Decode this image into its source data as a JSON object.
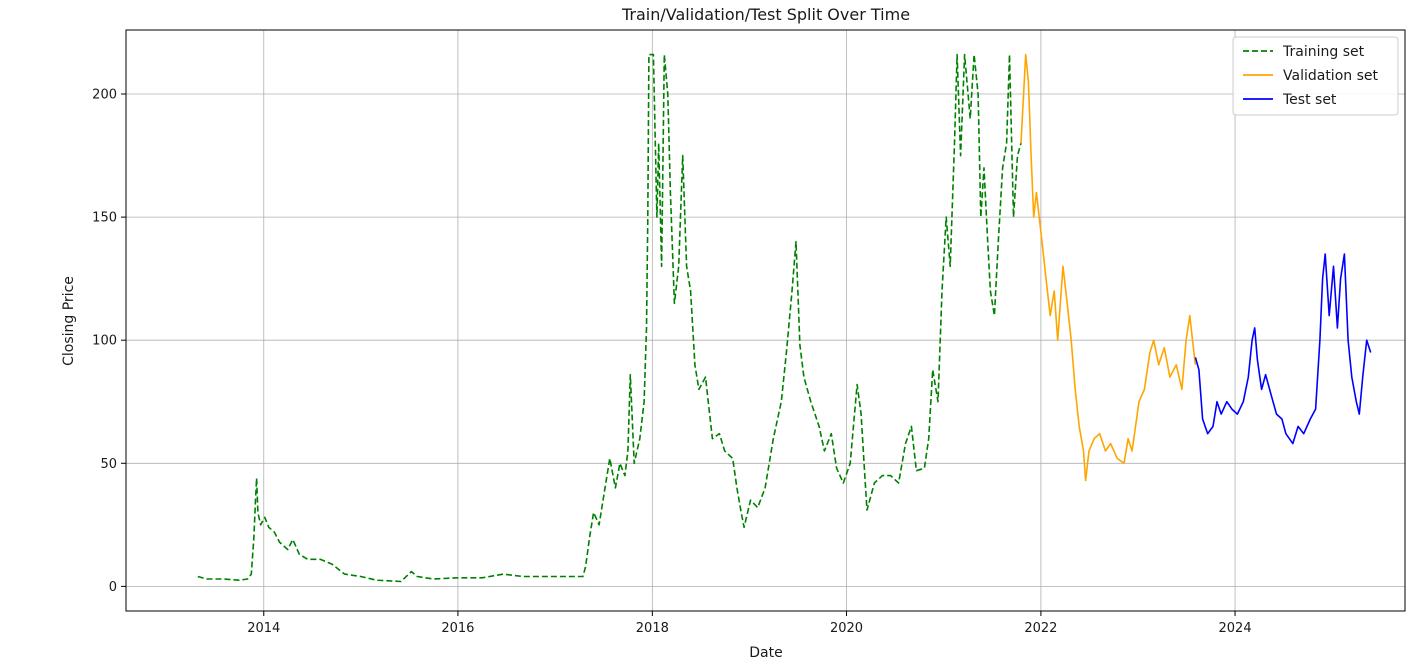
{
  "chart_data": {
    "type": "line",
    "title": "Train/Validation/Test Split Over Time",
    "xlabel": "Date",
    "ylabel": "Closing Price",
    "x_axis_type": "date",
    "xlim": [
      "2012-08-01",
      "2025-10-01"
    ],
    "ylim": [
      -10,
      226
    ],
    "xticks": [
      {
        "label": "2014",
        "date": "2014-01-01"
      },
      {
        "label": "2016",
        "date": "2016-01-01"
      },
      {
        "label": "2018",
        "date": "2018-01-01"
      },
      {
        "label": "2020",
        "date": "2020-01-01"
      },
      {
        "label": "2022",
        "date": "2022-01-01"
      },
      {
        "label": "2024",
        "date": "2024-01-01"
      }
    ],
    "yticks": [
      0,
      50,
      100,
      150,
      200
    ],
    "grid": true,
    "legend_position": "top-right",
    "series": [
      {
        "name": "Training set",
        "color": "#008000",
        "style": "dashed",
        "points": [
          [
            "2013-04-28",
            4
          ],
          [
            "2013-06-01",
            3
          ],
          [
            "2013-08-01",
            3
          ],
          [
            "2013-10-01",
            2.5
          ],
          [
            "2013-11-01",
            3
          ],
          [
            "2013-11-15",
            5
          ],
          [
            "2013-11-25",
            20
          ],
          [
            "2013-12-01",
            35
          ],
          [
            "2013-12-05",
            44
          ],
          [
            "2013-12-10",
            30
          ],
          [
            "2013-12-20",
            25
          ],
          [
            "2014-01-05",
            28
          ],
          [
            "2014-01-20",
            24
          ],
          [
            "2014-02-10",
            22
          ],
          [
            "2014-03-01",
            18
          ],
          [
            "2014-04-01",
            15
          ],
          [
            "2014-04-20",
            19
          ],
          [
            "2014-05-15",
            13
          ],
          [
            "2014-06-15",
            11
          ],
          [
            "2014-08-01",
            11
          ],
          [
            "2014-09-15",
            9
          ],
          [
            "2014-11-01",
            5
          ],
          [
            "2015-01-01",
            4
          ],
          [
            "2015-03-01",
            2.5
          ],
          [
            "2015-06-01",
            2
          ],
          [
            "2015-07-10",
            6
          ],
          [
            "2015-08-01",
            4
          ],
          [
            "2015-10-01",
            3
          ],
          [
            "2016-01-01",
            3.5
          ],
          [
            "2016-04-01",
            3.5
          ],
          [
            "2016-06-20",
            5
          ],
          [
            "2016-09-01",
            4
          ],
          [
            "2017-01-01",
            4
          ],
          [
            "2017-03-01",
            4
          ],
          [
            "2017-04-15",
            4
          ],
          [
            "2017-04-25",
            8
          ],
          [
            "2017-05-10",
            20
          ],
          [
            "2017-05-25",
            30
          ],
          [
            "2017-06-15",
            25
          ],
          [
            "2017-07-10",
            42
          ],
          [
            "2017-07-25",
            52
          ],
          [
            "2017-08-15",
            40
          ],
          [
            "2017-09-01",
            50
          ],
          [
            "2017-09-20",
            45
          ],
          [
            "2017-10-01",
            55
          ],
          [
            "2017-10-10",
            86
          ],
          [
            "2017-10-25",
            50
          ],
          [
            "2017-11-15",
            60
          ],
          [
            "2017-12-01",
            75
          ],
          [
            "2017-12-10",
            105
          ],
          [
            "2017-12-15",
            150
          ],
          [
            "2017-12-19",
            216
          ],
          [
            "2018-01-05",
            216
          ],
          [
            "2018-01-18",
            150
          ],
          [
            "2018-01-25",
            180
          ],
          [
            "2018-02-05",
            130
          ],
          [
            "2018-02-15",
            216
          ],
          [
            "2018-02-28",
            200
          ],
          [
            "2018-03-10",
            160
          ],
          [
            "2018-03-25",
            115
          ],
          [
            "2018-04-10",
            130
          ],
          [
            "2018-04-25",
            175
          ],
          [
            "2018-05-10",
            130
          ],
          [
            "2018-05-25",
            120
          ],
          [
            "2018-06-10",
            90
          ],
          [
            "2018-06-25",
            80
          ],
          [
            "2018-07-20",
            85
          ],
          [
            "2018-08-15",
            60
          ],
          [
            "2018-09-10",
            62
          ],
          [
            "2018-09-30",
            55
          ],
          [
            "2018-10-30",
            52
          ],
          [
            "2018-11-15",
            40
          ],
          [
            "2018-12-01",
            30
          ],
          [
            "2018-12-12",
            24
          ],
          [
            "2019-01-05",
            35
          ],
          [
            "2019-02-01",
            32
          ],
          [
            "2019-03-01",
            40
          ],
          [
            "2019-04-01",
            60
          ],
          [
            "2019-05-01",
            75
          ],
          [
            "2019-05-20",
            95
          ],
          [
            "2019-06-10",
            120
          ],
          [
            "2019-06-25",
            140
          ],
          [
            "2019-07-10",
            98
          ],
          [
            "2019-07-25",
            85
          ],
          [
            "2019-08-20",
            75
          ],
          [
            "2019-09-20",
            65
          ],
          [
            "2019-10-10",
            55
          ],
          [
            "2019-11-05",
            62
          ],
          [
            "2019-11-25",
            48
          ],
          [
            "2019-12-20",
            42
          ],
          [
            "2020-01-15",
            50
          ],
          [
            "2020-02-10",
            82
          ],
          [
            "2020-02-25",
            70
          ],
          [
            "2020-03-10",
            45
          ],
          [
            "2020-03-18",
            31
          ],
          [
            "2020-04-15",
            42
          ],
          [
            "2020-05-15",
            45
          ],
          [
            "2020-06-15",
            45
          ],
          [
            "2020-07-15",
            42
          ],
          [
            "2020-08-10",
            58
          ],
          [
            "2020-09-01",
            65
          ],
          [
            "2020-09-20",
            47
          ],
          [
            "2020-10-20",
            48
          ],
          [
            "2020-11-05",
            60
          ],
          [
            "2020-11-20",
            88
          ],
          [
            "2020-12-10",
            75
          ],
          [
            "2020-12-25",
            120
          ],
          [
            "2021-01-10",
            150
          ],
          [
            "2021-01-25",
            130
          ],
          [
            "2021-02-10",
            180
          ],
          [
            "2021-02-20",
            216
          ],
          [
            "2021-03-05",
            175
          ],
          [
            "2021-03-20",
            216
          ],
          [
            "2021-04-10",
            190
          ],
          [
            "2021-04-25",
            216
          ],
          [
            "2021-05-10",
            200
          ],
          [
            "2021-05-20",
            150
          ],
          [
            "2021-06-01",
            170
          ],
          [
            "2021-06-15",
            140
          ],
          [
            "2021-06-25",
            120
          ],
          [
            "2021-07-10",
            110
          ],
          [
            "2021-07-25",
            140
          ],
          [
            "2021-08-10",
            170
          ],
          [
            "2021-08-25",
            180
          ],
          [
            "2021-09-05",
            216
          ],
          [
            "2021-09-20",
            150
          ],
          [
            "2021-10-05",
            175
          ],
          [
            "2021-10-18",
            180
          ]
        ]
      },
      {
        "name": "Validation set",
        "color": "#ffa500",
        "style": "solid",
        "points": [
          [
            "2021-10-18",
            180
          ],
          [
            "2021-10-28",
            200
          ],
          [
            "2021-11-05",
            216
          ],
          [
            "2021-11-15",
            205
          ],
          [
            "2021-11-25",
            175
          ],
          [
            "2021-12-05",
            150
          ],
          [
            "2021-12-15",
            160
          ],
          [
            "2022-01-05",
            140
          ],
          [
            "2022-01-20",
            125
          ],
          [
            "2022-02-05",
            110
          ],
          [
            "2022-02-20",
            120
          ],
          [
            "2022-03-05",
            100
          ],
          [
            "2022-03-25",
            130
          ],
          [
            "2022-04-10",
            115
          ],
          [
            "2022-04-25",
            100
          ],
          [
            "2022-05-10",
            80
          ],
          [
            "2022-05-25",
            65
          ],
          [
            "2022-06-10",
            55
          ],
          [
            "2022-06-18",
            43
          ],
          [
            "2022-07-01",
            55
          ],
          [
            "2022-07-20",
            60
          ],
          [
            "2022-08-10",
            62
          ],
          [
            "2022-09-01",
            55
          ],
          [
            "2022-09-20",
            58
          ],
          [
            "2022-10-15",
            52
          ],
          [
            "2022-11-10",
            50
          ],
          [
            "2022-11-25",
            60
          ],
          [
            "2022-12-10",
            55
          ],
          [
            "2023-01-05",
            75
          ],
          [
            "2023-01-25",
            80
          ],
          [
            "2023-02-15",
            95
          ],
          [
            "2023-03-01",
            100
          ],
          [
            "2023-03-20",
            90
          ],
          [
            "2023-04-10",
            97
          ],
          [
            "2023-05-01",
            85
          ],
          [
            "2023-05-25",
            90
          ],
          [
            "2023-06-15",
            80
          ],
          [
            "2023-07-01",
            100
          ],
          [
            "2023-07-15",
            110
          ],
          [
            "2023-07-25",
            100
          ],
          [
            "2023-08-05",
            90
          ]
        ]
      },
      {
        "name": "Test set",
        "color": "#0000ff",
        "style": "solid",
        "points": [
          [
            "2023-08-05",
            93
          ],
          [
            "2023-08-18",
            88
          ],
          [
            "2023-09-01",
            68
          ],
          [
            "2023-09-20",
            62
          ],
          [
            "2023-10-10",
            65
          ],
          [
            "2023-10-25",
            75
          ],
          [
            "2023-11-10",
            70
          ],
          [
            "2023-12-01",
            75
          ],
          [
            "2023-12-20",
            72
          ],
          [
            "2024-01-10",
            70
          ],
          [
            "2024-02-01",
            75
          ],
          [
            "2024-02-20",
            85
          ],
          [
            "2024-03-05",
            100
          ],
          [
            "2024-03-15",
            105
          ],
          [
            "2024-03-25",
            92
          ],
          [
            "2024-04-10",
            80
          ],
          [
            "2024-04-25",
            86
          ],
          [
            "2024-05-15",
            78
          ],
          [
            "2024-06-05",
            70
          ],
          [
            "2024-06-25",
            68
          ],
          [
            "2024-07-10",
            62
          ],
          [
            "2024-08-05",
            58
          ],
          [
            "2024-08-25",
            65
          ],
          [
            "2024-09-15",
            62
          ],
          [
            "2024-10-10",
            68
          ],
          [
            "2024-10-30",
            72
          ],
          [
            "2024-11-15",
            100
          ],
          [
            "2024-11-25",
            125
          ],
          [
            "2024-12-05",
            135
          ],
          [
            "2024-12-20",
            110
          ],
          [
            "2025-01-05",
            130
          ],
          [
            "2025-01-20",
            105
          ],
          [
            "2025-02-01",
            125
          ],
          [
            "2025-02-15",
            135
          ],
          [
            "2025-03-01",
            100
          ],
          [
            "2025-03-15",
            85
          ],
          [
            "2025-04-01",
            75
          ],
          [
            "2025-04-12",
            70
          ],
          [
            "2025-04-25",
            85
          ],
          [
            "2025-05-10",
            100
          ],
          [
            "2025-05-25",
            95
          ]
        ]
      }
    ]
  }
}
